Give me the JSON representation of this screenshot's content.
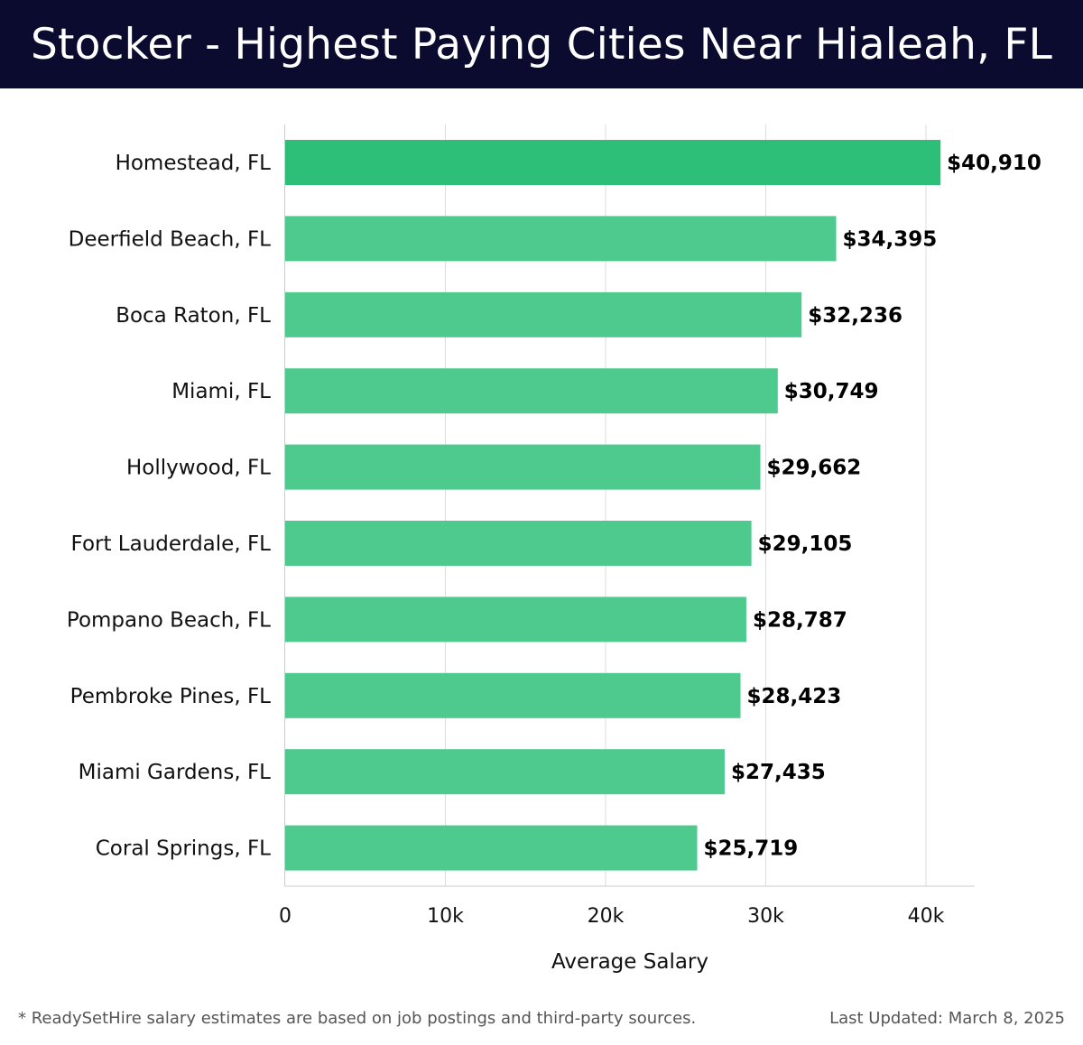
{
  "colors": {
    "title_bg": "#0a0b2e",
    "bar_top": "#2dbf78",
    "bar": "#4fca8f",
    "grid": "#dddddd",
    "axis": "#cccccc"
  },
  "chart_data": {
    "type": "bar",
    "orientation": "horizontal",
    "title": "Stocker - Highest Paying Cities Near Hialeah, FL",
    "xlabel": "Average Salary",
    "ylabel": "",
    "xlim": [
      0,
      43000
    ],
    "xticks": [
      0,
      10000,
      20000,
      30000,
      40000
    ],
    "xtick_labels": [
      "0",
      "10k",
      "20k",
      "30k",
      "40k"
    ],
    "grid": true,
    "categories": [
      "Homestead, FL",
      "Deerfield Beach, FL",
      "Boca Raton, FL",
      "Miami, FL",
      "Hollywood, FL",
      "Fort Lauderdale, FL",
      "Pompano Beach, FL",
      "Pembroke Pines, FL",
      "Miami Gardens, FL",
      "Coral Springs, FL"
    ],
    "values": [
      40910,
      34395,
      32236,
      30749,
      29662,
      29105,
      28787,
      28423,
      27435,
      25719
    ],
    "value_labels": [
      "$40,910",
      "$34,395",
      "$32,236",
      "$30,749",
      "$29,662",
      "$29,105",
      "$28,787",
      "$28,423",
      "$27,435",
      "$25,719"
    ]
  },
  "footer": {
    "note": "* ReadySetHire salary estimates are based on job postings and third-party sources.",
    "updated": "Last Updated: March 8, 2025"
  }
}
